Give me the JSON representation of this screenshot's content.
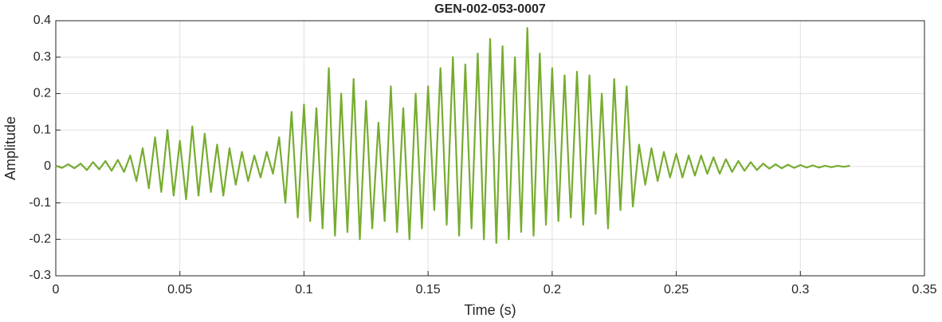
{
  "chart_data": {
    "type": "line",
    "title": "GEN-002-053-0007",
    "xlabel": "Time (s)",
    "ylabel": "Amplitude",
    "color": "#77ac30",
    "grid": true,
    "xlim": [
      0,
      0.35
    ],
    "xticks": [
      0,
      0.05,
      0.1,
      0.15,
      0.2,
      0.25,
      0.3,
      0.35
    ],
    "ylim": [
      -0.3,
      0.4
    ],
    "yticks": [
      -0.3,
      -0.2,
      -0.1,
      0,
      0.1,
      0.2,
      0.3,
      0.4
    ],
    "x": [
      0,
      0.0025,
      0.005,
      0.0075,
      0.01,
      0.0125,
      0.015,
      0.0175,
      0.02,
      0.0225,
      0.025,
      0.0275,
      0.03,
      0.0325,
      0.035,
      0.0375,
      0.04,
      0.0425,
      0.045,
      0.0475,
      0.05,
      0.0525,
      0.055,
      0.0575,
      0.06,
      0.0625,
      0.065,
      0.0675,
      0.07,
      0.0725,
      0.075,
      0.0775,
      0.08,
      0.0825,
      0.085,
      0.0875,
      0.09,
      0.0925,
      0.095,
      0.0975,
      0.1,
      0.1025,
      0.105,
      0.1075,
      0.11,
      0.1125,
      0.115,
      0.1175,
      0.12,
      0.1225,
      0.125,
      0.1275,
      0.13,
      0.1325,
      0.135,
      0.1375,
      0.14,
      0.1425,
      0.145,
      0.1475,
      0.15,
      0.1525,
      0.155,
      0.1575,
      0.16,
      0.1625,
      0.165,
      0.1675,
      0.17,
      0.1725,
      0.175,
      0.1775,
      0.18,
      0.1825,
      0.185,
      0.1875,
      0.19,
      0.1925,
      0.195,
      0.1975,
      0.2,
      0.2025,
      0.205,
      0.2075,
      0.21,
      0.2125,
      0.215,
      0.2175,
      0.22,
      0.2225,
      0.225,
      0.2275,
      0.23,
      0.2325,
      0.235,
      0.2375,
      0.24,
      0.2425,
      0.245,
      0.2475,
      0.25,
      0.2525,
      0.255,
      0.2575,
      0.26,
      0.2625,
      0.265,
      0.2675,
      0.27,
      0.2725,
      0.275,
      0.2775,
      0.28,
      0.2825,
      0.285,
      0.2875,
      0.29,
      0.2925,
      0.295,
      0.2975,
      0.3,
      0.3025,
      0.305,
      0.3075,
      0.31,
      0.3125,
      0.315,
      0.3175,
      0.32
    ],
    "values": [
      0.002,
      -0.004,
      0.006,
      -0.005,
      0.008,
      -0.01,
      0.012,
      -0.008,
      0.015,
      -0.012,
      0.018,
      -0.015,
      0.03,
      -0.04,
      0.05,
      -0.06,
      0.08,
      -0.07,
      0.1,
      -0.08,
      0.07,
      -0.09,
      0.11,
      -0.08,
      0.09,
      -0.07,
      0.06,
      -0.08,
      0.05,
      -0.05,
      0.04,
      -0.04,
      0.03,
      -0.03,
      0.04,
      -0.02,
      0.08,
      -0.1,
      0.15,
      -0.14,
      0.17,
      -0.15,
      0.16,
      -0.17,
      0.27,
      -0.19,
      0.2,
      -0.18,
      0.24,
      -0.2,
      0.18,
      -0.17,
      0.12,
      -0.15,
      0.22,
      -0.18,
      0.16,
      -0.2,
      0.2,
      -0.17,
      0.22,
      -0.12,
      0.27,
      -0.16,
      0.3,
      -0.19,
      0.28,
      -0.17,
      0.31,
      -0.2,
      0.35,
      -0.21,
      0.33,
      -0.2,
      0.3,
      -0.18,
      0.38,
      -0.19,
      0.31,
      -0.16,
      0.27,
      -0.15,
      0.25,
      -0.14,
      0.26,
      -0.16,
      0.25,
      -0.13,
      0.2,
      -0.17,
      0.24,
      -0.12,
      0.22,
      -0.11,
      0.06,
      -0.05,
      0.05,
      -0.04,
      0.04,
      -0.03,
      0.035,
      -0.03,
      0.03,
      -0.025,
      0.03,
      -0.02,
      0.025,
      -0.02,
      0.02,
      -0.015,
      0.015,
      -0.012,
      0.012,
      -0.01,
      0.008,
      -0.006,
      0.006,
      -0.005,
      0.005,
      -0.004,
      0.004,
      -0.003,
      0.003,
      -0.003,
      0.002,
      -0.002,
      0.002,
      -0.001,
      0.002
    ]
  }
}
